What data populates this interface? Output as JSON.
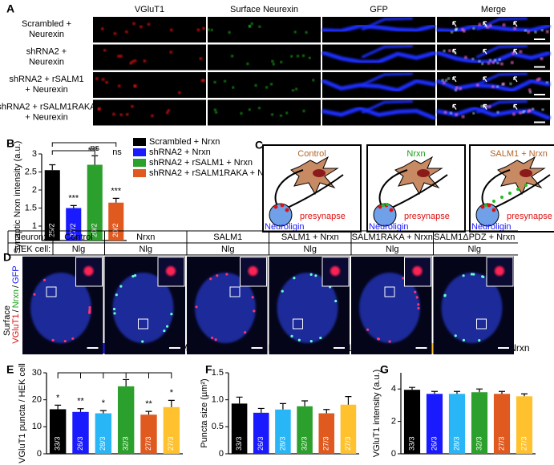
{
  "panel_labels": [
    "A",
    "B",
    "C",
    "D",
    "E",
    "F",
    "G"
  ],
  "panel_a": {
    "columns": [
      "VGluT1",
      "Surface Neurexin",
      "GFP",
      "Merge"
    ],
    "rows": [
      [
        "Scrambled +",
        "Neurexin"
      ],
      [
        "shRNA2 +",
        "Neurexin"
      ],
      [
        "shRNA2 + rSALM1",
        "+ Neurexin"
      ],
      [
        "shRNA2 + rSALM1RAKA",
        "+ Neurexin"
      ]
    ]
  },
  "panel_c": {
    "titles": [
      "Control",
      "Nrxn",
      "SALM1 + Nrxn"
    ],
    "presynapse": "presynapse",
    "neuroligin": "Neuroligin"
  },
  "panel_d": {
    "row_headers": [
      "Neuron:",
      "HEK cell:"
    ],
    "neurons": [
      "Control",
      "Nrxn",
      "SALM1",
      "SALM1 + Nrxn",
      "SALM1RAKA + Nrxn",
      "SALM1ΔPDZ + Nrxn"
    ],
    "hek": [
      "Nlg",
      "Nlg",
      "Nlg",
      "Nlg",
      "Nlg",
      "Nlg"
    ],
    "side_label": {
      "surface": "Surface",
      "vglut1": "VGluT1",
      "nrxn": "Nrxn",
      "gfp": "GFP",
      "separator": "/"
    }
  },
  "legend_efg": [
    {
      "name": "Control",
      "color": "#000000"
    },
    {
      "name": "Nrxn",
      "color": "#1a1aff"
    },
    {
      "name": "SALM1",
      "color": "#29b6f6"
    },
    {
      "name": "SALM1 + Nrxn",
      "color": "#2ca02c"
    },
    {
      "name": "SALM1RAKA + Nrxn",
      "color": "#e05a20"
    },
    {
      "name": "SALM1ΔPDZ + Nrxn",
      "color": "#ffc22e"
    }
  ],
  "chart_data": [
    {
      "type": "bar",
      "ylabel": "Synaptic Nrxn intensity (a.u.)",
      "ylim": [
        0.6,
        3
      ],
      "yticks": [
        1,
        1.5,
        2,
        2.5,
        3
      ],
      "series": [
        {
          "name": "Scrambled + Nrxn",
          "color": "#000000",
          "values": [
            2.55
          ],
          "errors": [
            0.15
          ]
        },
        {
          "name": "shRNA2 + Nrxn",
          "color": "#1a1aff",
          "values": [
            1.5
          ],
          "errors": [
            0.07
          ]
        },
        {
          "name": "shRNA2 + rSALM1 + Nrxn",
          "color": "#2ca02c",
          "values": [
            2.7
          ],
          "errors": [
            0.25
          ]
        },
        {
          "name": "shRNA2 + rSALM1RAKA + Nrxn",
          "color": "#e05a20",
          "values": [
            1.65
          ],
          "errors": [
            0.12
          ]
        }
      ],
      "bar_labels": [
        "25/2",
        "27/2",
        "20/2",
        "20/2"
      ],
      "significance": [
        null,
        "***",
        "ns",
        "***"
      ],
      "bracket_labels": [
        "***",
        "ns"
      ]
    },
    {
      "type": "bar",
      "ylabel": "VGluT1 puncta / HEK cell",
      "ylim": [
        0,
        30
      ],
      "yticks": [
        0,
        10,
        20,
        30
      ],
      "values": [
        16.5,
        15.5,
        15,
        25,
        14.5,
        17.3
      ],
      "errors": [
        1.5,
        1.2,
        1,
        2.5,
        1.2,
        2.5
      ],
      "colors": [
        "#000000",
        "#1a1aff",
        "#29b6f6",
        "#2ca02c",
        "#e05a20",
        "#ffc22e"
      ],
      "bar_labels": [
        "33/3",
        "26/3",
        "28/3",
        "32/3",
        "27/3",
        "27/3"
      ],
      "significance": [
        "*",
        "**",
        "*",
        null,
        "**",
        "*"
      ]
    },
    {
      "type": "bar",
      "ylabel": "Puncta size (µm²)",
      "ylim": [
        0,
        1.5
      ],
      "yticks": [
        0,
        0.5,
        {
          "value": 1,
          "label": "1.0"
        },
        1.5
      ],
      "values": [
        0.93,
        0.76,
        0.82,
        0.88,
        0.75,
        0.91
      ],
      "errors": [
        0.12,
        0.08,
        0.11,
        0.1,
        0.07,
        0.15
      ],
      "colors": [
        "#000000",
        "#1a1aff",
        "#29b6f6",
        "#2ca02c",
        "#e05a20",
        "#ffc22e"
      ],
      "bar_labels": [
        "33/3",
        "26/3",
        "28/3",
        "32/3",
        "27/3",
        "27/3"
      ]
    },
    {
      "type": "bar",
      "ylabel": "VGluT1 intensity (a.u.)",
      "ylim": [
        0,
        5
      ],
      "yticks": [
        0,
        2,
        4
      ],
      "values": [
        3.95,
        3.7,
        3.7,
        3.8,
        3.7,
        3.55
      ],
      "errors": [
        0.15,
        0.15,
        0.15,
        0.2,
        0.15,
        0.15
      ],
      "colors": [
        "#000000",
        "#1a1aff",
        "#29b6f6",
        "#2ca02c",
        "#e05a20",
        "#ffc22e"
      ],
      "bar_labels": [
        "33/3",
        "26/3",
        "28/3",
        "32/3",
        "27/3",
        "27/3"
      ]
    }
  ]
}
